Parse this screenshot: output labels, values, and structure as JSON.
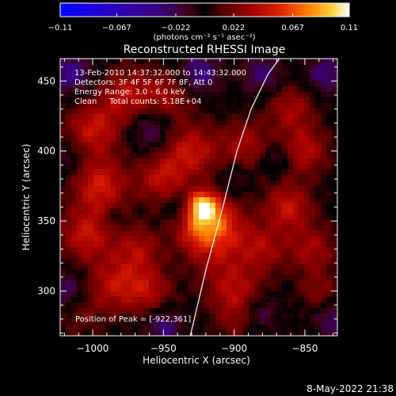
{
  "chart_data": {
    "type": "heatmap",
    "title": "Reconstructed RHESSI Image",
    "xlabel": "Heliocentric X (arcsec)",
    "ylabel": "Heliocentric Y (arcsec)",
    "xlim": [
      -1023,
      -827
    ],
    "ylim": [
      268,
      466
    ],
    "x_ticks": [
      {
        "value": -1000,
        "label": "−1000"
      },
      {
        "value": -950,
        "label": "−950"
      },
      {
        "value": -900,
        "label": "−900"
      },
      {
        "value": -850,
        "label": "−850"
      }
    ],
    "y_ticks": [
      {
        "value": 300,
        "label": "300"
      },
      {
        "value": 350,
        "label": "350"
      },
      {
        "value": 400,
        "label": "400"
      },
      {
        "value": 450,
        "label": "450"
      }
    ],
    "colorbar": {
      "min": -0.11,
      "max": 0.11,
      "ticks": [
        {
          "value": -0.11,
          "label": "−0.11"
        },
        {
          "value": -0.067,
          "label": "−0.067"
        },
        {
          "value": -0.022,
          "label": "−0.022"
        },
        {
          "value": 0.022,
          "label": "0.022"
        },
        {
          "value": 0.067,
          "label": "0.067"
        },
        {
          "value": 0.11,
          "label": "0.11"
        }
      ],
      "unit_label": "(photons cm⁻² s⁻¹ asec⁻²)"
    },
    "annotations": [
      "13-Feb-2010 14:37:32.000 to 14:43:32.000",
      "Detectors: 3F 4F 5F 6F 7F 8F, Att 0",
      "Energy Range: 3.0 - 6.0 keV",
      "Clean     Total counts: 5.18E+04"
    ],
    "peak_label": "Position of Peak = [-922,361]",
    "peak": {
      "x": -922,
      "y": 361,
      "value": 0.11
    },
    "limb": {
      "x": [
        -931,
        -920,
        -908,
        -898,
        -888,
        -876,
        -868
      ],
      "y": [
        268,
        315,
        360,
        400,
        430,
        455,
        466
      ]
    },
    "blobs": [
      {
        "x": -922,
        "y": 361,
        "sigma": 7,
        "amp": 0.07
      },
      {
        "x": -921,
        "y": 352,
        "sigma": 12,
        "amp": 0.05
      },
      {
        "x": -930,
        "y": 340,
        "sigma": 10,
        "amp": 0.02
      },
      {
        "x": -905,
        "y": 348,
        "sigma": 13,
        "amp": 0.03
      },
      {
        "x": -915,
        "y": 330,
        "sigma": 14,
        "amp": 0.03
      },
      {
        "x": -1000,
        "y": 415,
        "sigma": 14,
        "amp": 0.045
      },
      {
        "x": -995,
        "y": 375,
        "sigma": 14,
        "amp": 0.05
      },
      {
        "x": -1005,
        "y": 340,
        "sigma": 13,
        "amp": 0.045
      },
      {
        "x": -985,
        "y": 305,
        "sigma": 14,
        "amp": 0.04
      },
      {
        "x": -975,
        "y": 440,
        "sigma": 14,
        "amp": 0.04
      },
      {
        "x": -968,
        "y": 330,
        "sigma": 12,
        "amp": 0.035
      },
      {
        "x": -952,
        "y": 380,
        "sigma": 12,
        "amp": 0.04
      },
      {
        "x": -960,
        "y": 300,
        "sigma": 12,
        "amp": 0.035
      },
      {
        "x": -945,
        "y": 440,
        "sigma": 12,
        "amp": 0.03
      },
      {
        "x": -930,
        "y": 400,
        "sigma": 14,
        "amp": 0.045
      },
      {
        "x": -892,
        "y": 405,
        "sigma": 12,
        "amp": 0.035
      },
      {
        "x": -900,
        "y": 300,
        "sigma": 14,
        "amp": 0.04
      },
      {
        "x": -880,
        "y": 330,
        "sigma": 12,
        "amp": 0.035
      },
      {
        "x": -862,
        "y": 360,
        "sigma": 12,
        "amp": 0.045
      },
      {
        "x": -850,
        "y": 400,
        "sigma": 12,
        "amp": 0.04
      },
      {
        "x": -860,
        "y": 430,
        "sigma": 12,
        "amp": 0.035
      },
      {
        "x": -845,
        "y": 330,
        "sigma": 12,
        "amp": 0.035
      },
      {
        "x": -840,
        "y": 300,
        "sigma": 10,
        "amp": 0.025
      },
      {
        "x": -1010,
        "y": 285,
        "sigma": 12,
        "amp": 0.02
      },
      {
        "x": -900,
        "y": 275,
        "sigma": 10,
        "amp": 0.015
      },
      {
        "x": -1015,
        "y": 455,
        "sigma": 10,
        "amp": -0.04
      },
      {
        "x": -1018,
        "y": 395,
        "sigma": 10,
        "amp": -0.02
      },
      {
        "x": -960,
        "y": 415,
        "sigma": 10,
        "amp": -0.03
      },
      {
        "x": -940,
        "y": 360,
        "sigma": 6,
        "amp": -0.02
      },
      {
        "x": -925,
        "y": 455,
        "sigma": 10,
        "amp": -0.04
      },
      {
        "x": -880,
        "y": 455,
        "sigma": 10,
        "amp": -0.03
      },
      {
        "x": -900,
        "y": 380,
        "sigma": 7,
        "amp": -0.02
      },
      {
        "x": -870,
        "y": 395,
        "sigma": 7,
        "amp": -0.025
      },
      {
        "x": -835,
        "y": 455,
        "sigma": 9,
        "amp": -0.035
      },
      {
        "x": -1018,
        "y": 300,
        "sigma": 10,
        "amp": -0.035
      },
      {
        "x": -950,
        "y": 275,
        "sigma": 9,
        "amp": -0.035
      },
      {
        "x": -830,
        "y": 280,
        "sigma": 9,
        "amp": -0.03
      },
      {
        "x": -880,
        "y": 285,
        "sigma": 8,
        "amp": -0.025
      },
      {
        "x": -985,
        "y": 352,
        "sigma": 5,
        "amp": -0.015
      }
    ],
    "colors": {
      "background": "#000000",
      "foreground": "#ffffff"
    },
    "grid": false
  },
  "footer": {
    "timestamp": "8-May-2022 21:38"
  }
}
